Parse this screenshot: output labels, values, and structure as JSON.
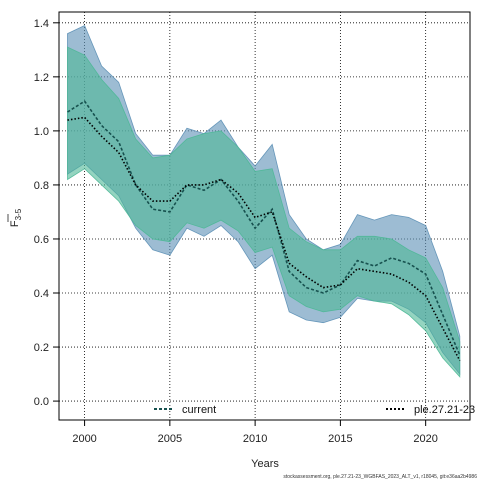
{
  "chart_data": {
    "type": "line",
    "xlabel": "Years",
    "ylabel_main": "F",
    "ylabel_sub": "3-5",
    "xlim": [
      1998.5,
      2022.6
    ],
    "ylim": [
      -0.07,
      1.44
    ],
    "x_ticks": [
      2000,
      2005,
      2010,
      2015,
      2020
    ],
    "y_ticks": [
      0.0,
      0.2,
      0.4,
      0.6,
      0.8,
      1.0,
      1.2,
      1.4
    ],
    "y_tick_labels": [
      "0.0",
      "0.2",
      "0.4",
      "0.6",
      "0.8",
      "1.0",
      "1.2",
      "1.4"
    ],
    "grid": true,
    "grid_style": "dotted",
    "legend_position": "bottom",
    "caption": "stockassessment.org, ple.27.21-23_WGBFAS_2023_ALT_v1, r18045, git:e36aa2b4986",
    "series": [
      {
        "name": "current",
        "color": "#1b6ca8",
        "band_color": "#5b8fb5",
        "line_color": "#17514f",
        "line_style": "dashed",
        "x": [
          1999,
          2000,
          2001,
          2002,
          2003,
          2004,
          2005,
          2006,
          2007,
          2008,
          2009,
          2010,
          2011,
          2012,
          2013,
          2014,
          2015,
          2016,
          2017,
          2018,
          2019,
          2020,
          2021,
          2022
        ],
        "y": [
          1.07,
          1.11,
          1.02,
          0.96,
          0.8,
          0.71,
          0.7,
          0.8,
          0.78,
          0.82,
          0.74,
          0.64,
          0.71,
          0.48,
          0.42,
          0.4,
          0.43,
          0.52,
          0.5,
          0.53,
          0.51,
          0.47,
          0.32,
          0.17
        ],
        "lower": [
          0.84,
          0.88,
          0.82,
          0.76,
          0.64,
          0.56,
          0.54,
          0.64,
          0.61,
          0.65,
          0.59,
          0.49,
          0.54,
          0.33,
          0.3,
          0.29,
          0.31,
          0.38,
          0.37,
          0.37,
          0.34,
          0.29,
          0.18,
          0.1
        ],
        "upper": [
          1.36,
          1.39,
          1.24,
          1.18,
          0.99,
          0.91,
          0.91,
          1.01,
          0.99,
          1.04,
          0.94,
          0.87,
          0.95,
          0.69,
          0.6,
          0.56,
          0.58,
          0.69,
          0.67,
          0.69,
          0.68,
          0.65,
          0.48,
          0.24
        ]
      },
      {
        "name": "ple.27.21-23",
        "color": "#1b9e77",
        "band_color": "#4db896",
        "line_color": "#000000",
        "line_style": "dotted",
        "x": [
          1999,
          2000,
          2001,
          2002,
          2003,
          2004,
          2005,
          2006,
          2007,
          2008,
          2009,
          2010,
          2011,
          2012,
          2013,
          2014,
          2015,
          2016,
          2017,
          2018,
          2019,
          2020,
          2021,
          2022
        ],
        "y": [
          1.04,
          1.05,
          0.98,
          0.92,
          0.8,
          0.74,
          0.74,
          0.8,
          0.8,
          0.82,
          0.77,
          0.68,
          0.7,
          0.51,
          0.46,
          0.42,
          0.43,
          0.49,
          0.48,
          0.47,
          0.44,
          0.39,
          0.27,
          0.15
        ],
        "lower": [
          0.82,
          0.86,
          0.8,
          0.74,
          0.65,
          0.6,
          0.59,
          0.66,
          0.64,
          0.67,
          0.63,
          0.55,
          0.57,
          0.39,
          0.35,
          0.33,
          0.34,
          0.39,
          0.37,
          0.36,
          0.32,
          0.26,
          0.16,
          0.09
        ],
        "upper": [
          1.31,
          1.28,
          1.19,
          1.12,
          0.97,
          0.9,
          0.91,
          0.97,
          0.99,
          1.0,
          0.94,
          0.85,
          0.86,
          0.64,
          0.59,
          0.56,
          0.56,
          0.61,
          0.61,
          0.6,
          0.56,
          0.53,
          0.42,
          0.22
        ]
      }
    ]
  }
}
